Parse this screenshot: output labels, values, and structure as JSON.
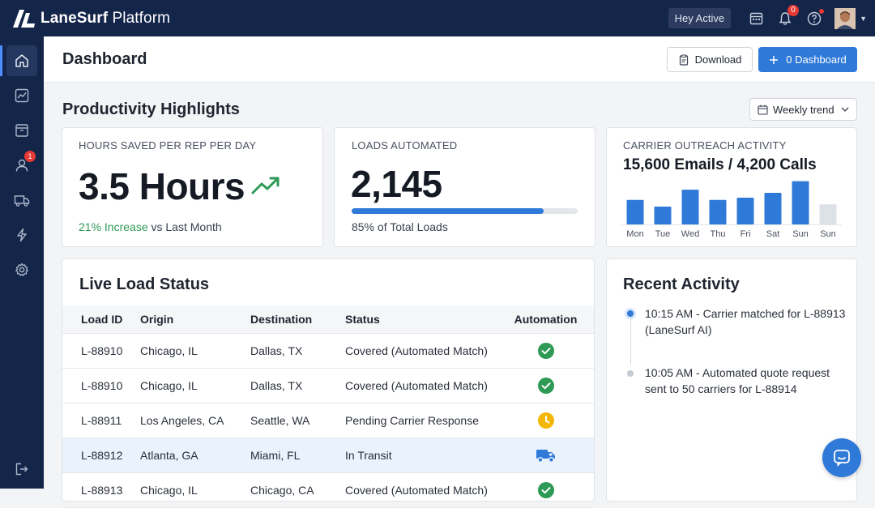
{
  "app": {
    "brand_bold": "LaneSurf",
    "brand_rest": " Platform"
  },
  "topbar": {
    "status": "Hey Active",
    "notifications_count": "0"
  },
  "sidebar": {
    "items": [
      {
        "icon": "home-icon",
        "active": true
      },
      {
        "icon": "chart-line-icon"
      },
      {
        "icon": "archive-box-icon"
      },
      {
        "icon": "users-icon",
        "badge": "1"
      },
      {
        "icon": "truck-icon"
      },
      {
        "icon": "lightning-icon"
      },
      {
        "icon": "gear-icon"
      }
    ],
    "bottom_icon": "logout-icon"
  },
  "header": {
    "title": "Dashboard",
    "download_label": "Download",
    "primary_label": "0 Dashboard"
  },
  "highlights": {
    "title": "Productivity Highlights",
    "trend_select": "Weekly trend",
    "hours": {
      "label": "HOURS SAVED PER REP PER DAY",
      "value": "3.5 Hours",
      "change": "21% Increase",
      "change_suffix": " vs Last Month"
    },
    "loads": {
      "label": "LOADS AUTOMATED",
      "value": "2,145",
      "progress_pct": 85,
      "caption": "85% of Total Loads"
    },
    "outreach": {
      "label": "CARRIER OUTREACH ACTIVITY",
      "total": "15,600 Emails / 4,200 Calls"
    }
  },
  "chart_data": {
    "type": "bar",
    "categories": [
      "Mon",
      "Tue",
      "Wed",
      "Thu",
      "Fri",
      "Sat",
      "Sun",
      "Sun"
    ],
    "values": [
      55,
      40,
      78,
      55,
      60,
      71,
      97,
      45
    ],
    "colors": [
      "#2f7ad8",
      "#2f7ad8",
      "#2f7ad8",
      "#2f7ad8",
      "#2f7ad8",
      "#2f7ad8",
      "#2f7ad8",
      "#dde1e8"
    ],
    "ylim": [
      0,
      100
    ],
    "grid": false
  },
  "live_status": {
    "title": "Live Load Status",
    "columns": [
      "Load ID",
      "Origin",
      "Destination",
      "Status",
      "Automation"
    ],
    "rows": [
      {
        "id": "L-88910",
        "origin": "Chicago, IL",
        "destination": "Dallas, TX",
        "status": "Covered (Automated Match)",
        "automation": "check",
        "highlight": false
      },
      {
        "id": "L-88910",
        "origin": "Chicago, IL",
        "destination": "Dallas, TX",
        "status": "Covered (Automated Match)",
        "automation": "check",
        "highlight": false
      },
      {
        "id": "L-88911",
        "origin": "Los Angeles, CA",
        "destination": "Seattle, WA",
        "status": "Pending Carrier Response",
        "automation": "clock",
        "highlight": false
      },
      {
        "id": "L-88912",
        "origin": "Atlanta, GA",
        "destination": "Miami, FL",
        "status": "In Transit",
        "automation": "truck",
        "highlight": true
      },
      {
        "id": "L-88913",
        "origin": "Chicago, IL",
        "destination": "Chicago, CA",
        "status": "Covered (Automated Match)",
        "automation": "check",
        "highlight": false
      }
    ]
  },
  "activity": {
    "title": "Recent Activity",
    "items": [
      {
        "text": "10:15 AM - Carrier matched for L-88913 (LaneSurf AI)",
        "dot": "#2f7ad8"
      },
      {
        "text": "10:05 AM - Automated quote request sent to 50 carriers for L-88914",
        "dot": "#c5cad3"
      }
    ]
  },
  "colors": {
    "navy": "#14254a",
    "accent": "#2f7ad8",
    "success": "#2e9a56",
    "warning": "#f2b705"
  }
}
